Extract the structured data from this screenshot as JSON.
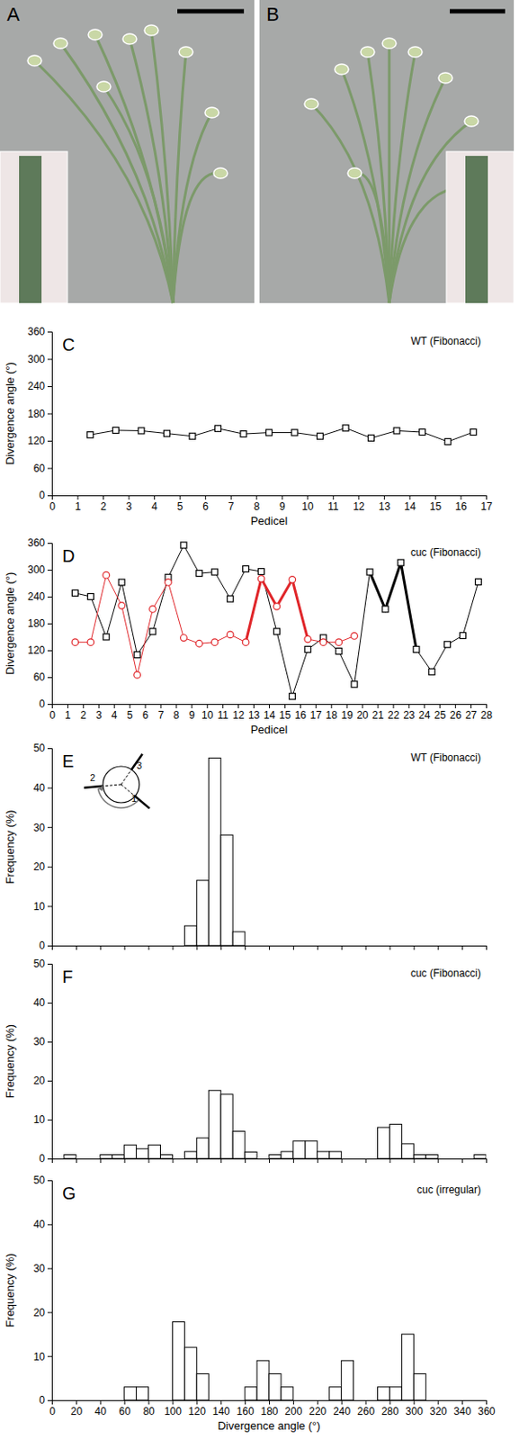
{
  "photos": [
    {
      "label": "A"
    },
    {
      "label": "B"
    }
  ],
  "chart_data": [
    {
      "type": "line",
      "panel_label": "C",
      "title": "WT (Fibonacci)",
      "x_label": "Pedicel",
      "y_label": "Divergence angle (°)",
      "xlim": [
        0,
        17
      ],
      "xticks": [
        0,
        1,
        2,
        3,
        4,
        5,
        6,
        7,
        8,
        9,
        10,
        11,
        12,
        13,
        14,
        15,
        16,
        17
      ],
      "ylim": [
        0,
        360
      ],
      "yticks": [
        0,
        60,
        120,
        180,
        240,
        300,
        360
      ],
      "series": [
        {
          "color": "#000000",
          "marker": "square",
          "line_style": "solid",
          "x": [
            1.5,
            2.5,
            3.5,
            4.5,
            5.5,
            6.5,
            7.5,
            8.5,
            9.5,
            10.5,
            11.5,
            12.5,
            13.5,
            14.5,
            15.5,
            16.5
          ],
          "values": [
            133,
            143,
            142,
            136,
            130,
            147,
            135,
            138,
            138,
            130,
            148,
            126,
            142,
            139,
            118,
            139
          ]
        }
      ]
    },
    {
      "type": "line",
      "panel_label": "D",
      "title": "cuc (Fibonacci)",
      "x_label": "Pedicel",
      "y_label": "Divergence angle (°)",
      "xlim": [
        0,
        28
      ],
      "xticks": [
        0,
        1,
        2,
        3,
        4,
        5,
        6,
        7,
        8,
        9,
        10,
        11,
        12,
        13,
        14,
        15,
        16,
        17,
        18,
        19,
        20,
        21,
        22,
        23,
        24,
        25,
        26,
        27,
        28
      ],
      "ylim": [
        0,
        360
      ],
      "yticks": [
        0,
        60,
        120,
        180,
        240,
        300,
        360
      ],
      "series": [
        {
          "color": "#000000",
          "marker": "square",
          "line_style": "solid",
          "x": [
            1.5,
            2.5,
            3.5,
            4.5,
            5.5,
            6.5,
            7.5,
            8.5,
            9.5,
            10.5,
            11.5,
            12.5,
            13.5,
            14.5,
            15.5,
            16.5,
            17.5,
            18.5,
            19.5,
            20.5,
            21.5,
            22.5,
            23.5,
            24.5,
            25.5,
            26.5,
            27.5
          ],
          "values": [
            248,
            240,
            150,
            272,
            110,
            162,
            283,
            355,
            292,
            295,
            235,
            302,
            296,
            162,
            17,
            122,
            148,
            118,
            44,
            295,
            212,
            316,
            122,
            72,
            133,
            153,
            273
          ]
        },
        {
          "color": "#e0262a",
          "marker": "circle",
          "line_style": "solid",
          "x": [
            1.5,
            2.5,
            3.5,
            4.5,
            5.5,
            6.5,
            7.5,
            8.5,
            9.5,
            10.5,
            11.5,
            12.5,
            13.5,
            14.5,
            15.5,
            16.5,
            17.5,
            18.5,
            19.5
          ],
          "values": [
            138,
            138,
            288,
            220,
            65,
            212,
            272,
            148,
            135,
            138,
            155,
            138,
            280,
            218,
            278,
            145,
            138,
            138,
            152
          ]
        },
        {
          "color": "#e0262a",
          "marker": "none",
          "line_style": "bold",
          "x": [
            12.5,
            13.5,
            14.5,
            15.5,
            16.5
          ],
          "values": [
            138,
            280,
            218,
            278,
            145
          ]
        },
        {
          "color": "#000000",
          "marker": "none",
          "line_style": "bold",
          "x": [
            20.5,
            21.5,
            22.5,
            23.5
          ],
          "values": [
            295,
            212,
            316,
            122
          ]
        }
      ]
    },
    {
      "type": "histogram",
      "panel_label": "E",
      "title": "WT (Fibonacci)",
      "y_label": "Frequency (%)",
      "xlim": [
        0,
        360
      ],
      "xticks": [
        0,
        20,
        40,
        60,
        80,
        100,
        120,
        140,
        160,
        180,
        200,
        220,
        240,
        260,
        280,
        300,
        320,
        340,
        360
      ],
      "ylim": [
        0,
        50
      ],
      "yticks": [
        0,
        10,
        20,
        30,
        40,
        50
      ],
      "tick_labels": "y",
      "color": "#ffffff",
      "bins": [
        110,
        120,
        130,
        140,
        150,
        160
      ],
      "values": [
        5,
        16.5,
        47.5,
        28,
        3.5
      ],
      "inset_labels": [
        "1",
        "2",
        "3"
      ]
    },
    {
      "type": "histogram",
      "panel_label": "F",
      "title": "cuc (Fibonacci)",
      "y_label": "Frequency (%)",
      "xlim": [
        0,
        360
      ],
      "xticks": [
        0,
        20,
        40,
        60,
        80,
        100,
        120,
        140,
        160,
        180,
        200,
        220,
        240,
        260,
        280,
        300,
        320,
        340,
        360
      ],
      "ylim": [
        0,
        50
      ],
      "yticks": [
        0,
        10,
        20,
        30,
        40,
        50
      ],
      "tick_labels": "y",
      "color": "#ffffff",
      "bins": [
        0,
        10,
        20,
        30,
        40,
        50,
        60,
        70,
        80,
        90,
        100,
        110,
        120,
        130,
        140,
        150,
        160,
        170,
        180,
        190,
        200,
        210,
        220,
        230,
        240,
        250,
        260,
        270,
        280,
        290,
        300,
        310,
        320,
        330,
        340,
        350,
        360
      ],
      "values": [
        0,
        1,
        0,
        0,
        1,
        1,
        3.5,
        2.5,
        3.5,
        1,
        0,
        1.8,
        5.3,
        17.5,
        16.5,
        7,
        1.7,
        0,
        1,
        1.8,
        4.5,
        4.5,
        1.8,
        1.8,
        0,
        0,
        0,
        8,
        8.8,
        3.8,
        1,
        1,
        0,
        0,
        0,
        1
      ]
    },
    {
      "type": "histogram",
      "panel_label": "G",
      "title": "cuc (irregular)",
      "x_label": "Divergence angle (°)",
      "y_label": "Frequency (%)",
      "xlim": [
        0,
        360
      ],
      "xticks": [
        0,
        20,
        40,
        60,
        80,
        100,
        120,
        140,
        160,
        180,
        200,
        220,
        240,
        260,
        280,
        300,
        320,
        340,
        360
      ],
      "ylim": [
        0,
        50
      ],
      "yticks": [
        0,
        10,
        20,
        30,
        40,
        50
      ],
      "color": "#ffffff",
      "bins": [
        0,
        10,
        20,
        30,
        40,
        50,
        60,
        70,
        80,
        90,
        100,
        110,
        120,
        130,
        140,
        150,
        160,
        170,
        180,
        190,
        200,
        210,
        220,
        230,
        240,
        250,
        260,
        270,
        280,
        290,
        300,
        310,
        320,
        330,
        340,
        350,
        360
      ],
      "values": [
        0,
        0,
        0,
        0,
        0,
        0,
        3,
        3,
        0,
        0,
        17.8,
        12,
        6,
        0,
        0,
        0,
        3,
        9,
        6,
        3,
        0,
        0,
        0,
        3,
        9,
        0,
        0,
        3,
        3,
        15,
        6,
        0,
        0,
        0,
        0,
        0
      ]
    }
  ]
}
